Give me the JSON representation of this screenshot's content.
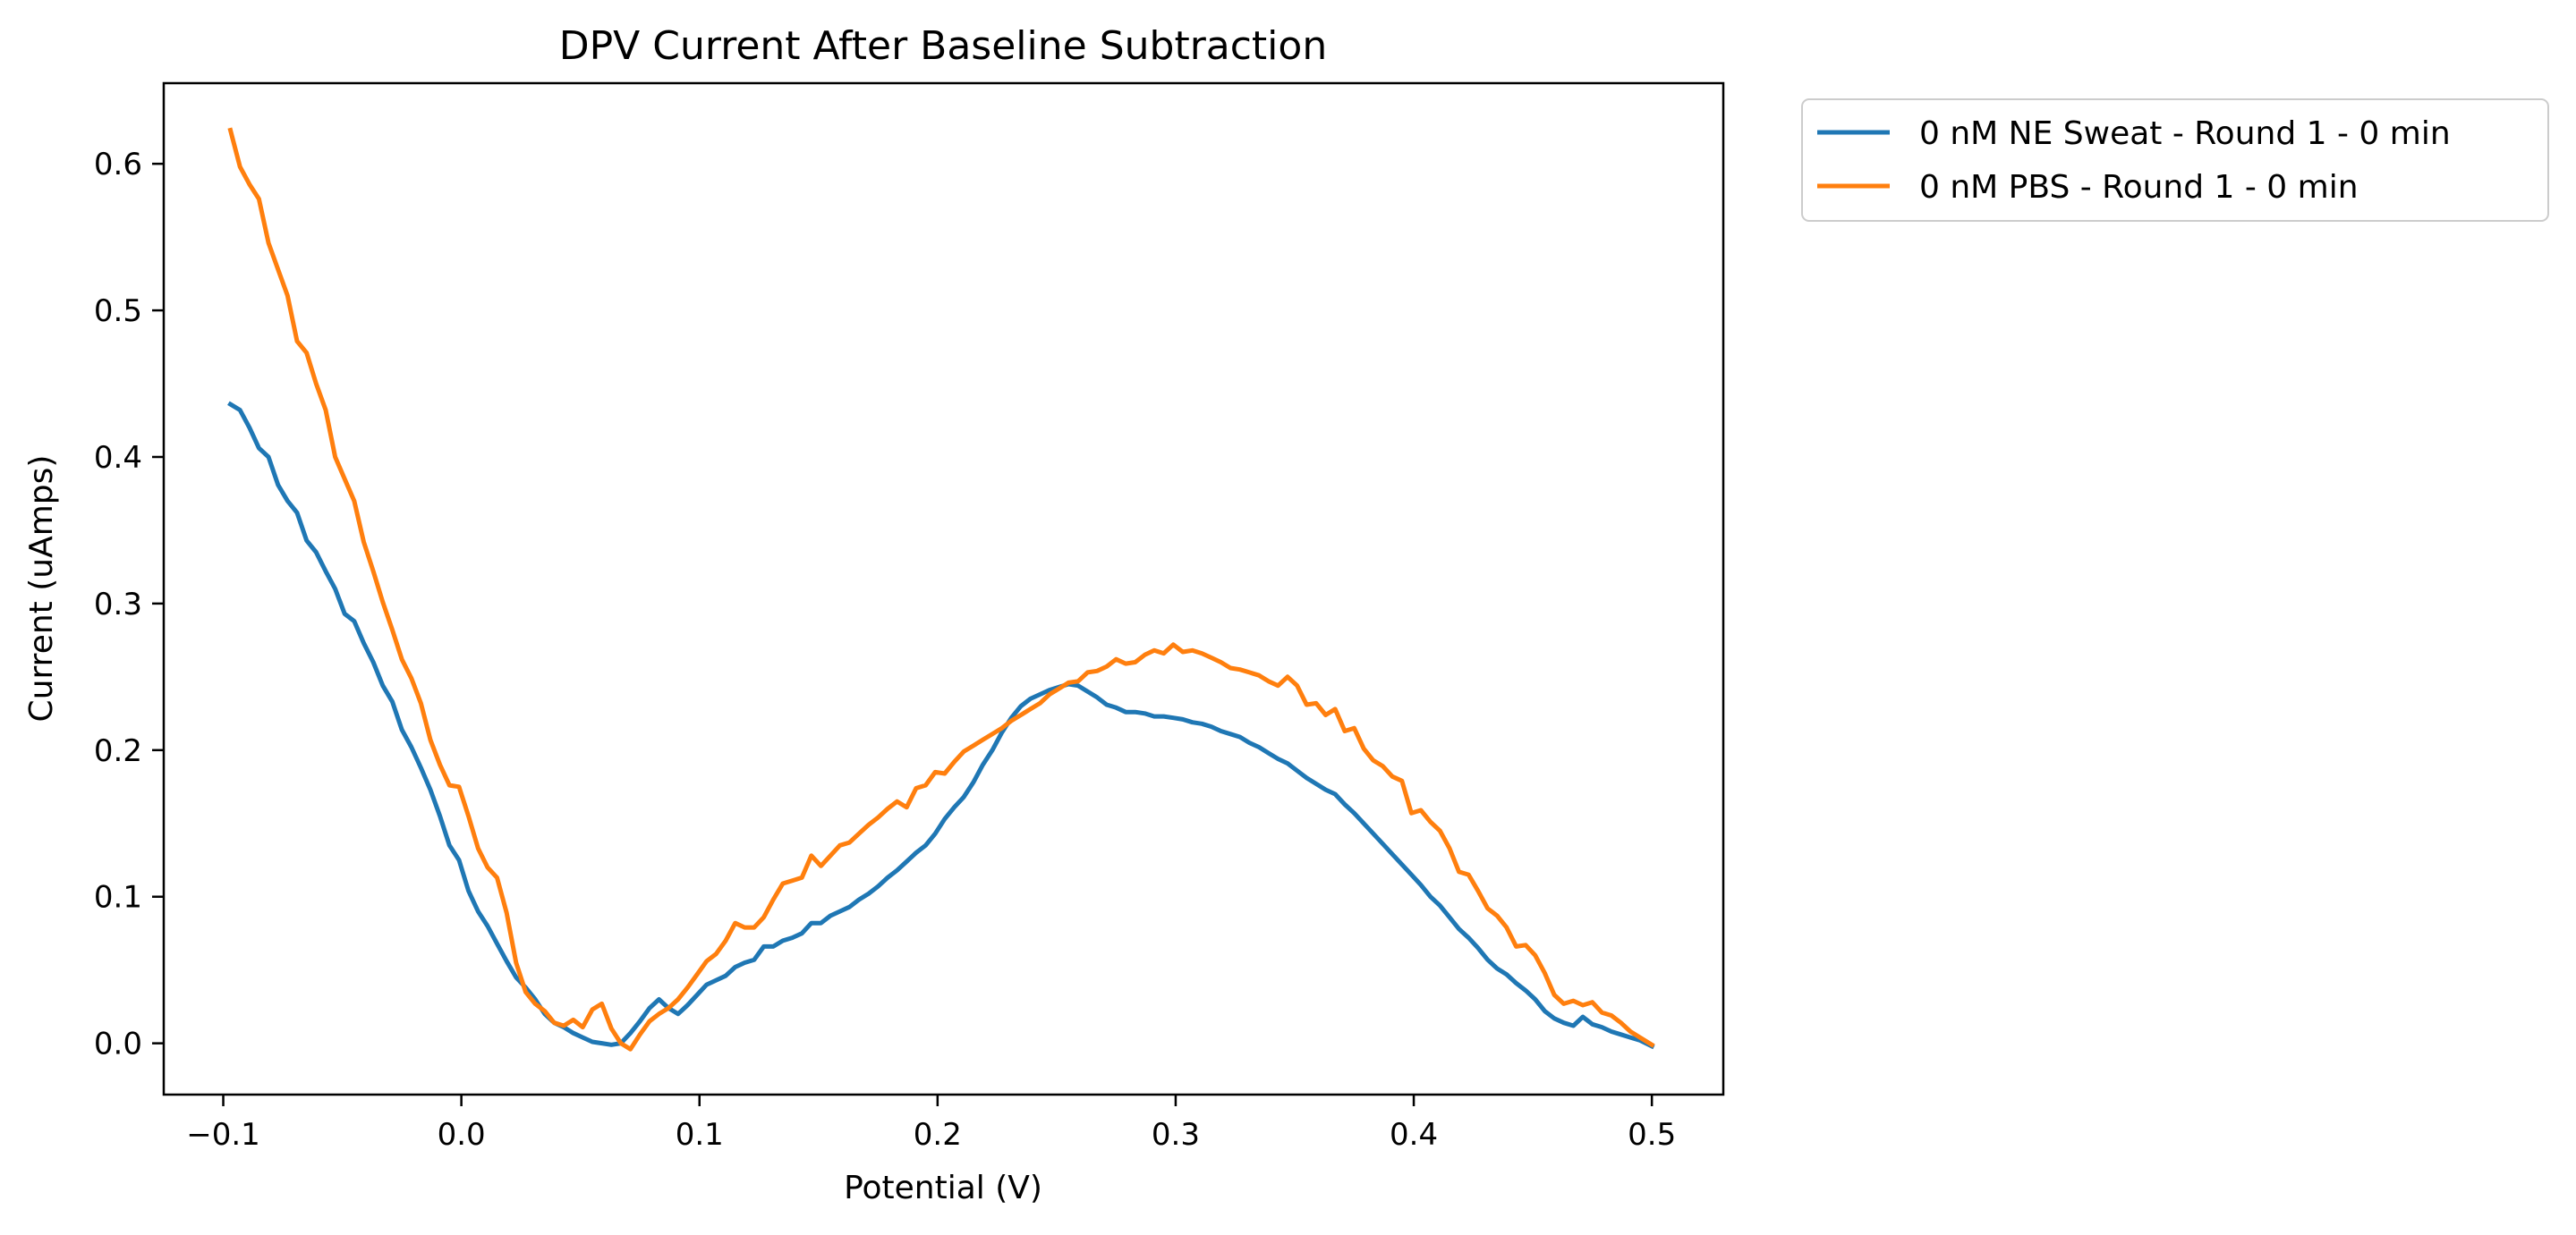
{
  "chart_data": {
    "type": "line",
    "title": "DPV Current After Baseline Subtraction",
    "xlabel": "Potential (V)",
    "ylabel": "Current (uAmps)",
    "xlim": [
      -0.125,
      0.53
    ],
    "ylim": [
      -0.035,
      0.655
    ],
    "xticks": [
      -0.1,
      0.0,
      0.1,
      0.2,
      0.3,
      0.4,
      0.5
    ],
    "xtick_labels": [
      "−0.1",
      "0.0",
      "0.1",
      "0.2",
      "0.3",
      "0.4",
      "0.5"
    ],
    "yticks": [
      0.0,
      0.1,
      0.2,
      0.3,
      0.4,
      0.5,
      0.6
    ],
    "ytick_labels": [
      "0.0",
      "0.1",
      "0.2",
      "0.3",
      "0.4",
      "0.5",
      "0.6"
    ],
    "grid": false,
    "legend_position": "outside-top-right",
    "series": [
      {
        "name": "0 nM NE Sweat - Round 1 - 0 min",
        "color": "#1f77b4",
        "points": [
          [
            -0.097,
            0.436
          ],
          [
            -0.093,
            0.432
          ],
          [
            -0.089,
            0.42
          ],
          [
            -0.085,
            0.406
          ],
          [
            -0.081,
            0.4
          ],
          [
            -0.077,
            0.381
          ],
          [
            -0.073,
            0.37
          ],
          [
            -0.069,
            0.362
          ],
          [
            -0.065,
            0.343
          ],
          [
            -0.061,
            0.335
          ],
          [
            -0.057,
            0.322
          ],
          [
            -0.053,
            0.31
          ],
          [
            -0.049,
            0.293
          ],
          [
            -0.045,
            0.288
          ],
          [
            -0.041,
            0.273
          ],
          [
            -0.037,
            0.26
          ],
          [
            -0.033,
            0.244
          ],
          [
            -0.029,
            0.233
          ],
          [
            -0.025,
            0.214
          ],
          [
            -0.021,
            0.202
          ],
          [
            -0.017,
            0.188
          ],
          [
            -0.013,
            0.173
          ],
          [
            -0.009,
            0.155
          ],
          [
            -0.005,
            0.135
          ],
          [
            -0.001,
            0.125
          ],
          [
            0.003,
            0.104
          ],
          [
            0.007,
            0.09
          ],
          [
            0.011,
            0.08
          ],
          [
            0.015,
            0.068
          ],
          [
            0.019,
            0.056
          ],
          [
            0.023,
            0.045
          ],
          [
            0.027,
            0.038
          ],
          [
            0.031,
            0.03
          ],
          [
            0.035,
            0.02
          ],
          [
            0.039,
            0.014
          ],
          [
            0.043,
            0.011
          ],
          [
            0.047,
            0.007
          ],
          [
            0.051,
            0.004
          ],
          [
            0.055,
            0.001
          ],
          [
            0.059,
            0.0
          ],
          [
            0.063,
            -0.001
          ],
          [
            0.067,
            0.0
          ],
          [
            0.071,
            0.007
          ],
          [
            0.075,
            0.015
          ],
          [
            0.079,
            0.024
          ],
          [
            0.083,
            0.03
          ],
          [
            0.087,
            0.024
          ],
          [
            0.091,
            0.02
          ],
          [
            0.095,
            0.026
          ],
          [
            0.099,
            0.033
          ],
          [
            0.103,
            0.04
          ],
          [
            0.107,
            0.043
          ],
          [
            0.111,
            0.046
          ],
          [
            0.115,
            0.052
          ],
          [
            0.119,
            0.055
          ],
          [
            0.123,
            0.057
          ],
          [
            0.127,
            0.066
          ],
          [
            0.131,
            0.066
          ],
          [
            0.135,
            0.07
          ],
          [
            0.139,
            0.072
          ],
          [
            0.143,
            0.075
          ],
          [
            0.147,
            0.082
          ],
          [
            0.151,
            0.082
          ],
          [
            0.155,
            0.087
          ],
          [
            0.159,
            0.09
          ],
          [
            0.163,
            0.093
          ],
          [
            0.167,
            0.098
          ],
          [
            0.171,
            0.102
          ],
          [
            0.175,
            0.107
          ],
          [
            0.179,
            0.113
          ],
          [
            0.183,
            0.118
          ],
          [
            0.187,
            0.124
          ],
          [
            0.191,
            0.13
          ],
          [
            0.195,
            0.135
          ],
          [
            0.199,
            0.143
          ],
          [
            0.203,
            0.153
          ],
          [
            0.207,
            0.161
          ],
          [
            0.211,
            0.168
          ],
          [
            0.215,
            0.178
          ],
          [
            0.219,
            0.19
          ],
          [
            0.223,
            0.2
          ],
          [
            0.227,
            0.212
          ],
          [
            0.231,
            0.222
          ],
          [
            0.235,
            0.23
          ],
          [
            0.239,
            0.235
          ],
          [
            0.243,
            0.238
          ],
          [
            0.247,
            0.241
          ],
          [
            0.251,
            0.243
          ],
          [
            0.255,
            0.245
          ],
          [
            0.259,
            0.244
          ],
          [
            0.263,
            0.24
          ],
          [
            0.267,
            0.236
          ],
          [
            0.271,
            0.231
          ],
          [
            0.275,
            0.229
          ],
          [
            0.279,
            0.226
          ],
          [
            0.283,
            0.226
          ],
          [
            0.287,
            0.225
          ],
          [
            0.291,
            0.223
          ],
          [
            0.295,
            0.223
          ],
          [
            0.299,
            0.222
          ],
          [
            0.303,
            0.221
          ],
          [
            0.307,
            0.219
          ],
          [
            0.311,
            0.218
          ],
          [
            0.315,
            0.216
          ],
          [
            0.319,
            0.213
          ],
          [
            0.323,
            0.211
          ],
          [
            0.327,
            0.209
          ],
          [
            0.331,
            0.205
          ],
          [
            0.335,
            0.202
          ],
          [
            0.339,
            0.198
          ],
          [
            0.343,
            0.194
          ],
          [
            0.347,
            0.191
          ],
          [
            0.351,
            0.186
          ],
          [
            0.355,
            0.181
          ],
          [
            0.359,
            0.177
          ],
          [
            0.363,
            0.173
          ],
          [
            0.367,
            0.17
          ],
          [
            0.371,
            0.163
          ],
          [
            0.375,
            0.157
          ],
          [
            0.379,
            0.15
          ],
          [
            0.383,
            0.143
          ],
          [
            0.387,
            0.136
          ],
          [
            0.391,
            0.129
          ],
          [
            0.395,
            0.122
          ],
          [
            0.399,
            0.115
          ],
          [
            0.403,
            0.108
          ],
          [
            0.407,
            0.1
          ],
          [
            0.411,
            0.094
          ],
          [
            0.415,
            0.086
          ],
          [
            0.419,
            0.078
          ],
          [
            0.423,
            0.072
          ],
          [
            0.427,
            0.065
          ],
          [
            0.431,
            0.057
          ],
          [
            0.435,
            0.051
          ],
          [
            0.439,
            0.047
          ],
          [
            0.443,
            0.041
          ],
          [
            0.447,
            0.036
          ],
          [
            0.451,
            0.03
          ],
          [
            0.455,
            0.022
          ],
          [
            0.459,
            0.017
          ],
          [
            0.463,
            0.014
          ],
          [
            0.467,
            0.012
          ],
          [
            0.471,
            0.018
          ],
          [
            0.475,
            0.013
          ],
          [
            0.479,
            0.011
          ],
          [
            0.483,
            0.008
          ],
          [
            0.487,
            0.006
          ],
          [
            0.491,
            0.004
          ],
          [
            0.495,
            0.002
          ],
          [
            0.5,
            -0.002
          ]
        ]
      },
      {
        "name": "0 nM PBS - Round 1 - 0 min",
        "color": "#ff7f0e",
        "points": [
          [
            -0.097,
            0.623
          ],
          [
            -0.093,
            0.598
          ],
          [
            -0.089,
            0.586
          ],
          [
            -0.085,
            0.576
          ],
          [
            -0.081,
            0.546
          ],
          [
            -0.077,
            0.528
          ],
          [
            -0.073,
            0.51
          ],
          [
            -0.069,
            0.479
          ],
          [
            -0.065,
            0.471
          ],
          [
            -0.061,
            0.45
          ],
          [
            -0.057,
            0.432
          ],
          [
            -0.053,
            0.4
          ],
          [
            -0.049,
            0.385
          ],
          [
            -0.045,
            0.37
          ],
          [
            -0.041,
            0.342
          ],
          [
            -0.037,
            0.322
          ],
          [
            -0.033,
            0.301
          ],
          [
            -0.029,
            0.282
          ],
          [
            -0.025,
            0.262
          ],
          [
            -0.021,
            0.249
          ],
          [
            -0.017,
            0.232
          ],
          [
            -0.013,
            0.207
          ],
          [
            -0.009,
            0.19
          ],
          [
            -0.005,
            0.176
          ],
          [
            -0.001,
            0.175
          ],
          [
            0.003,
            0.155
          ],
          [
            0.007,
            0.133
          ],
          [
            0.011,
            0.12
          ],
          [
            0.015,
            0.113
          ],
          [
            0.019,
            0.089
          ],
          [
            0.023,
            0.055
          ],
          [
            0.027,
            0.035
          ],
          [
            0.031,
            0.027
          ],
          [
            0.035,
            0.022
          ],
          [
            0.039,
            0.014
          ],
          [
            0.043,
            0.012
          ],
          [
            0.047,
            0.016
          ],
          [
            0.051,
            0.011
          ],
          [
            0.055,
            0.023
          ],
          [
            0.059,
            0.027
          ],
          [
            0.063,
            0.01
          ],
          [
            0.067,
            0.0
          ],
          [
            0.071,
            -0.004
          ],
          [
            0.075,
            0.006
          ],
          [
            0.079,
            0.015
          ],
          [
            0.083,
            0.02
          ],
          [
            0.087,
            0.024
          ],
          [
            0.091,
            0.03
          ],
          [
            0.095,
            0.038
          ],
          [
            0.099,
            0.047
          ],
          [
            0.103,
            0.056
          ],
          [
            0.107,
            0.061
          ],
          [
            0.111,
            0.07
          ],
          [
            0.115,
            0.082
          ],
          [
            0.119,
            0.079
          ],
          [
            0.123,
            0.079
          ],
          [
            0.127,
            0.086
          ],
          [
            0.131,
            0.098
          ],
          [
            0.135,
            0.109
          ],
          [
            0.139,
            0.111
          ],
          [
            0.143,
            0.113
          ],
          [
            0.147,
            0.128
          ],
          [
            0.151,
            0.121
          ],
          [
            0.155,
            0.128
          ],
          [
            0.159,
            0.135
          ],
          [
            0.163,
            0.137
          ],
          [
            0.167,
            0.143
          ],
          [
            0.171,
            0.149
          ],
          [
            0.175,
            0.154
          ],
          [
            0.179,
            0.16
          ],
          [
            0.183,
            0.165
          ],
          [
            0.187,
            0.161
          ],
          [
            0.191,
            0.174
          ],
          [
            0.195,
            0.176
          ],
          [
            0.199,
            0.185
          ],
          [
            0.203,
            0.184
          ],
          [
            0.207,
            0.192
          ],
          [
            0.211,
            0.199
          ],
          [
            0.215,
            0.203
          ],
          [
            0.219,
            0.207
          ],
          [
            0.223,
            0.211
          ],
          [
            0.227,
            0.215
          ],
          [
            0.231,
            0.22
          ],
          [
            0.235,
            0.224
          ],
          [
            0.239,
            0.228
          ],
          [
            0.243,
            0.232
          ],
          [
            0.247,
            0.238
          ],
          [
            0.251,
            0.242
          ],
          [
            0.255,
            0.246
          ],
          [
            0.259,
            0.247
          ],
          [
            0.263,
            0.253
          ],
          [
            0.267,
            0.254
          ],
          [
            0.271,
            0.257
          ],
          [
            0.275,
            0.262
          ],
          [
            0.279,
            0.259
          ],
          [
            0.283,
            0.26
          ],
          [
            0.287,
            0.265
          ],
          [
            0.291,
            0.268
          ],
          [
            0.295,
            0.266
          ],
          [
            0.299,
            0.272
          ],
          [
            0.303,
            0.267
          ],
          [
            0.307,
            0.268
          ],
          [
            0.311,
            0.266
          ],
          [
            0.315,
            0.263
          ],
          [
            0.319,
            0.26
          ],
          [
            0.323,
            0.256
          ],
          [
            0.327,
            0.255
          ],
          [
            0.331,
            0.253
          ],
          [
            0.335,
            0.251
          ],
          [
            0.339,
            0.247
          ],
          [
            0.343,
            0.244
          ],
          [
            0.347,
            0.25
          ],
          [
            0.351,
            0.244
          ],
          [
            0.355,
            0.231
          ],
          [
            0.359,
            0.232
          ],
          [
            0.363,
            0.224
          ],
          [
            0.367,
            0.228
          ],
          [
            0.371,
            0.213
          ],
          [
            0.375,
            0.215
          ],
          [
            0.379,
            0.201
          ],
          [
            0.383,
            0.193
          ],
          [
            0.387,
            0.189
          ],
          [
            0.391,
            0.182
          ],
          [
            0.395,
            0.179
          ],
          [
            0.399,
            0.157
          ],
          [
            0.403,
            0.159
          ],
          [
            0.407,
            0.151
          ],
          [
            0.411,
            0.145
          ],
          [
            0.415,
            0.133
          ],
          [
            0.419,
            0.117
          ],
          [
            0.423,
            0.115
          ],
          [
            0.427,
            0.104
          ],
          [
            0.431,
            0.092
          ],
          [
            0.435,
            0.087
          ],
          [
            0.439,
            0.079
          ],
          [
            0.443,
            0.066
          ],
          [
            0.447,
            0.067
          ],
          [
            0.451,
            0.06
          ],
          [
            0.455,
            0.048
          ],
          [
            0.459,
            0.033
          ],
          [
            0.463,
            0.027
          ],
          [
            0.467,
            0.029
          ],
          [
            0.471,
            0.026
          ],
          [
            0.475,
            0.028
          ],
          [
            0.479,
            0.021
          ],
          [
            0.483,
            0.019
          ],
          [
            0.487,
            0.014
          ],
          [
            0.491,
            0.008
          ],
          [
            0.495,
            0.004
          ],
          [
            0.5,
            -0.001
          ]
        ]
      }
    ]
  }
}
